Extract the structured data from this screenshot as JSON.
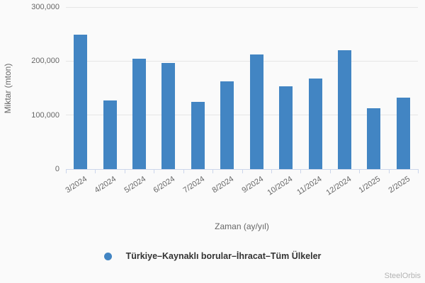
{
  "chart_data": {
    "type": "bar",
    "categories": [
      "3/2024",
      "4/2024",
      "5/2024",
      "6/2024",
      "7/2024",
      "8/2024",
      "9/2024",
      "10/2024",
      "11/2024",
      "12/2024",
      "1/2025",
      "2/2025"
    ],
    "values": [
      249000,
      127000,
      204000,
      197000,
      125000,
      162000,
      212000,
      153000,
      168000,
      220000,
      113000,
      132000
    ],
    "xlabel": "Zaman (ay/yıl)",
    "ylabel": "Miktar (mton)",
    "ylim": [
      0,
      300000
    ],
    "yticks": [
      0,
      100000,
      200000,
      300000
    ],
    "ytick_labels": [
      "0",
      "100,000",
      "200,000",
      "300,000"
    ],
    "grid": true,
    "legend_position": "bottom",
    "series_name": "Türkiye–Kaynaklı borular–İhracat–Tüm Ülkeler",
    "colors": {
      "bar": "#4285c3",
      "axis_line": "#ccd6eb",
      "gridline": "#e6e6e6",
      "label_text": "#666666",
      "legend_text": "#333333",
      "background": "#fafafa",
      "watermark_text": "#b3b3b3"
    }
  },
  "watermark": "SteelOrbis"
}
